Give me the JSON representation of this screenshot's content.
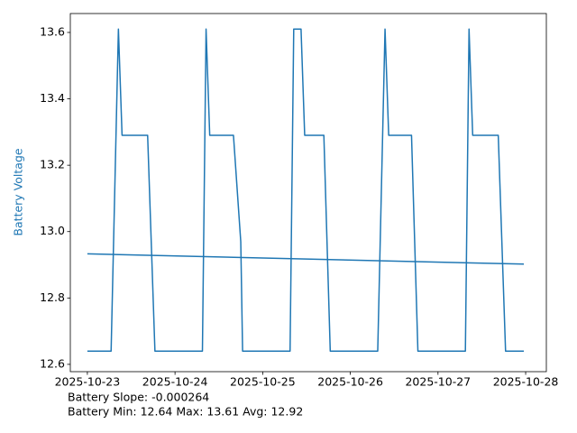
{
  "chart_data": {
    "type": "line",
    "ylabel": "Battery Voltage",
    "ylabel_color": "#1f77b4",
    "annotations": [
      "Battery Slope: -0.000264",
      "Battery Min: 12.64 Max: 13.61 Avg: 12.92"
    ],
    "xlim": [
      "2025-10-22T19:20",
      "2025-10-28T05:40"
    ],
    "xticks": [
      {
        "value": "2025-10-23T00:00",
        "label": "2025-10-23"
      },
      {
        "value": "2025-10-24T00:00",
        "label": "2025-10-24"
      },
      {
        "value": "2025-10-25T00:00",
        "label": "2025-10-25"
      },
      {
        "value": "2025-10-26T00:00",
        "label": "2025-10-26"
      },
      {
        "value": "2025-10-27T00:00",
        "label": "2025-10-27"
      },
      {
        "value": "2025-10-28T00:00",
        "label": "2025-10-28"
      }
    ],
    "ylim": [
      12.578,
      13.657
    ],
    "yticks": [
      12.6,
      12.8,
      {
        "value": 13,
        "label": "13.0"
      },
      13.2,
      13.4,
      13.6
    ],
    "series": [
      {
        "color": "#1f77b4",
        "x": [
          "2025-10-23T00:00",
          "2025-10-23T06:30",
          "2025-10-23T08:30",
          "2025-10-23T09:30",
          "2025-10-23T16:30",
          "2025-10-23T18:30",
          "2025-10-24T07:30",
          "2025-10-24T08:30",
          "2025-10-24T09:30",
          "2025-10-24T16:00",
          "2025-10-24T18:00",
          "2025-10-24T18:30",
          "2025-10-25T07:30",
          "2025-10-25T08:30",
          "2025-10-25T10:30",
          "2025-10-25T11:30",
          "2025-10-25T16:45",
          "2025-10-25T18:30",
          "2025-10-26T07:30",
          "2025-10-26T09:30",
          "2025-10-26T10:30",
          "2025-10-26T16:45",
          "2025-10-26T18:30",
          "2025-10-27T07:30",
          "2025-10-27T08:30",
          "2025-10-27T09:30",
          "2025-10-27T16:30",
          "2025-10-27T18:30",
          "2025-10-27T23:30"
        ],
        "values": [
          12.64,
          12.64,
          13.61,
          13.29,
          13.29,
          12.64,
          12.64,
          13.61,
          13.29,
          13.29,
          12.97,
          12.64,
          12.64,
          13.61,
          13.61,
          13.29,
          13.29,
          12.64,
          12.64,
          13.61,
          13.29,
          13.29,
          12.64,
          12.64,
          13.61,
          13.29,
          13.29,
          12.64,
          12.64
        ]
      },
      {
        "color": "#1f77b4",
        "x": [
          "2025-10-23T00:00",
          "2025-10-27T23:30"
        ],
        "values": [
          12.933,
          12.902
        ]
      }
    ]
  }
}
